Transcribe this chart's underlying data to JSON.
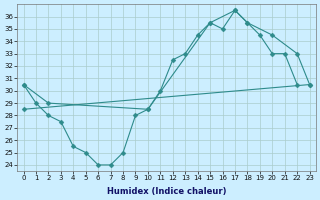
{
  "line_color": "#2e8b8b",
  "bg_color": "#cceeff",
  "grid_color": "#aacccc",
  "xlabel": "Humidex (Indice chaleur)",
  "ylim": [
    23.5,
    37.0
  ],
  "xlim": [
    -0.5,
    23.5
  ],
  "yticks": [
    24,
    25,
    26,
    27,
    28,
    29,
    30,
    31,
    32,
    33,
    34,
    35,
    36
  ],
  "xticks": [
    0,
    1,
    2,
    3,
    4,
    5,
    6,
    7,
    8,
    9,
    10,
    11,
    12,
    13,
    14,
    15,
    16,
    17,
    18,
    19,
    20,
    21,
    22,
    23
  ],
  "line1_x": [
    0,
    1,
    2,
    3,
    4,
    5,
    6,
    7,
    8,
    9,
    10,
    11,
    12,
    13,
    14,
    15,
    16,
    17,
    18,
    19,
    20,
    21,
    22
  ],
  "line1_y": [
    30.5,
    29.0,
    28.0,
    27.5,
    25.5,
    25.0,
    24.0,
    24.0,
    25.0,
    28.0,
    28.5,
    30.0,
    32.5,
    33.0,
    34.5,
    35.5,
    35.0,
    36.5,
    35.5,
    34.5,
    33.0,
    33.0,
    30.5
  ],
  "line2_x": [
    0,
    2,
    10,
    15,
    17,
    18,
    20,
    22,
    23
  ],
  "line2_y": [
    30.5,
    29.0,
    28.5,
    35.5,
    36.5,
    35.5,
    34.5,
    33.0,
    30.5
  ],
  "line3_x": [
    0,
    23
  ],
  "line3_y": [
    28.5,
    30.5
  ]
}
